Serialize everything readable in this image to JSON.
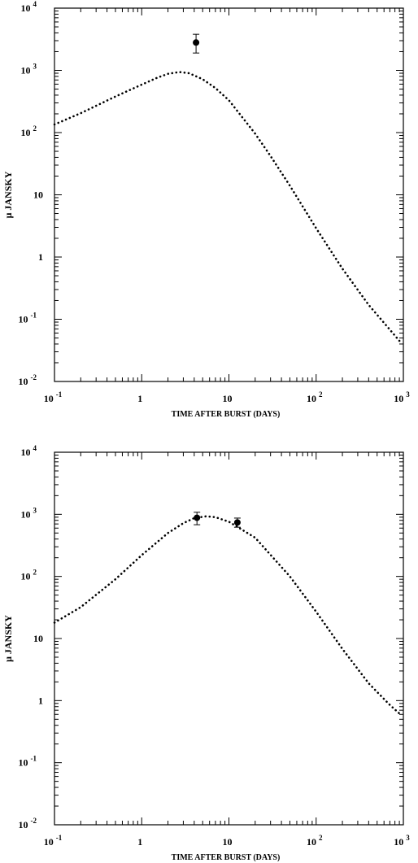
{
  "chart_data": [
    {
      "type": "scatter",
      "title": "",
      "xlabel": "TIME AFTER BURST (DAYS)",
      "ylabel": "μ JANSKY",
      "xscale": "log",
      "yscale": "log",
      "xlim": [
        0.1,
        1000
      ],
      "ylim": [
        0.01,
        10000
      ],
      "x_ticks": [
        {
          "base": "10",
          "exp": "-1"
        },
        {
          "base": "1",
          "exp": ""
        },
        {
          "base": "10",
          "exp": ""
        },
        {
          "base": "10",
          "exp": "2"
        },
        {
          "base": "10",
          "exp": "3"
        }
      ],
      "y_ticks": [
        {
          "base": "10",
          "exp": "-2"
        },
        {
          "base": "10",
          "exp": "-1"
        },
        {
          "base": "1",
          "exp": ""
        },
        {
          "base": "10",
          "exp": ""
        },
        {
          "base": "10",
          "exp": "2"
        },
        {
          "base": "10",
          "exp": "3"
        },
        {
          "base": "10",
          "exp": "4"
        }
      ],
      "model_curve": {
        "style": "dotted",
        "x": [
          0.1,
          0.2,
          0.5,
          1,
          1.5,
          2,
          2.7,
          3.5,
          5,
          7,
          10,
          20,
          30,
          50,
          100,
          200,
          400,
          700,
          900
        ],
        "y": [
          135,
          205,
          380,
          590,
          760,
          880,
          940,
          900,
          720,
          520,
          330,
          96,
          42,
          14,
          2.9,
          0.65,
          0.17,
          0.068,
          0.045
        ]
      },
      "points": [
        {
          "x": 4.2,
          "y": 2800,
          "y_low": 1900,
          "y_high": 3800
        }
      ]
    },
    {
      "type": "scatter",
      "title": "",
      "xlabel": "TIME AFTER BURST (DAYS)",
      "ylabel": "μ JANSKY",
      "xscale": "log",
      "yscale": "log",
      "xlim": [
        0.1,
        1000
      ],
      "ylim": [
        0.01,
        10000
      ],
      "x_ticks": [
        {
          "base": "10",
          "exp": "-1"
        },
        {
          "base": "1",
          "exp": ""
        },
        {
          "base": "10",
          "exp": ""
        },
        {
          "base": "10",
          "exp": "2"
        },
        {
          "base": "10",
          "exp": "3"
        }
      ],
      "y_ticks": [
        {
          "base": "10",
          "exp": "-2"
        },
        {
          "base": "10",
          "exp": "-1"
        },
        {
          "base": "1",
          "exp": ""
        },
        {
          "base": "10",
          "exp": ""
        },
        {
          "base": "10",
          "exp": "2"
        },
        {
          "base": "10",
          "exp": "3"
        },
        {
          "base": "10",
          "exp": "4"
        }
      ],
      "model_curve": {
        "style": "dotted",
        "x": [
          0.1,
          0.2,
          0.5,
          1,
          2,
          3,
          4,
          5.5,
          7,
          10,
          20,
          50,
          100,
          200,
          400,
          700,
          900
        ],
        "y": [
          18,
          32,
          90,
          220,
          500,
          720,
          870,
          930,
          900,
          760,
          420,
          100,
          27,
          6.8,
          1.9,
          0.85,
          0.62
        ]
      },
      "points": [
        {
          "x": 4.3,
          "y": 880,
          "y_low": 680,
          "y_high": 1080
        },
        {
          "x": 12.5,
          "y": 740,
          "y_low": 620,
          "y_high": 870
        }
      ]
    }
  ]
}
